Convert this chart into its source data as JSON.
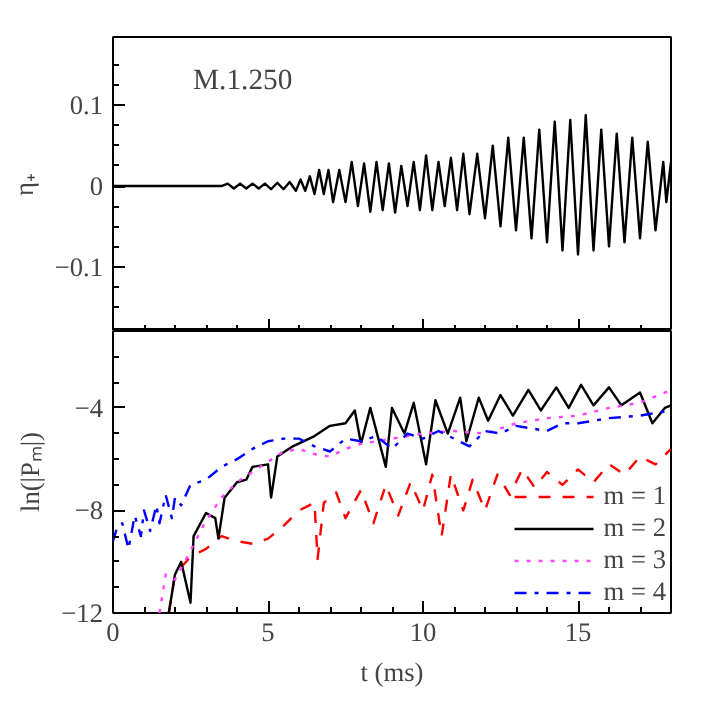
{
  "chart_data": [
    {
      "type": "line",
      "ylabel": "η₊",
      "annotations": [
        "M.1.250"
      ],
      "tick_labels": "y",
      "xlim": [
        0,
        18
      ],
      "ylim": [
        -0.18,
        0.185
      ],
      "xticks": [
        0,
        {
          "value": 1,
          "label": null
        },
        {
          "value": 2,
          "label": null
        },
        {
          "value": 3,
          "label": null
        },
        {
          "value": 4,
          "label": null
        },
        5,
        {
          "value": 6,
          "label": null
        },
        {
          "value": 7,
          "label": null
        },
        {
          "value": 8,
          "label": null
        },
        {
          "value": 9,
          "label": null
        },
        10,
        {
          "value": 11,
          "label": null
        },
        {
          "value": 12,
          "label": null
        },
        {
          "value": 13,
          "label": null
        },
        {
          "value": 14,
          "label": null
        },
        15,
        {
          "value": 16,
          "label": null
        },
        {
          "value": 17,
          "label": null
        }
      ],
      "yticks": [
        {
          "value": -0.15,
          "label": null
        },
        {
          "value": -0.125,
          "label": null
        },
        {
          "value": -0.1,
          "label": "−0.1"
        },
        {
          "value": -0.075,
          "label": null
        },
        {
          "value": -0.05,
          "label": null
        },
        {
          "value": -0.025,
          "label": null
        },
        0,
        {
          "value": 0.025,
          "label": null
        },
        {
          "value": 0.05,
          "label": null
        },
        {
          "value": 0.075,
          "label": null
        },
        0.1,
        {
          "value": 0.125,
          "label": null
        },
        {
          "value": 0.15,
          "label": null
        }
      ],
      "series": [
        {
          "color": "#000000",
          "line_style": "solid",
          "x": [
            0,
            3.5,
            3.7,
            3.9,
            4.1,
            4.3,
            4.5,
            4.7,
            4.9,
            5.1,
            5.3,
            5.5,
            5.7,
            5.9,
            6.05,
            6.2,
            6.35,
            6.5,
            6.65,
            6.8,
            6.95,
            7.1,
            7.3,
            7.5,
            7.7,
            7.9,
            8.1,
            8.3,
            8.5,
            8.7,
            8.9,
            9.1,
            9.3,
            9.5,
            9.7,
            9.9,
            10.1,
            10.3,
            10.5,
            10.7,
            10.9,
            11.1,
            11.3,
            11.5,
            11.75,
            12.0,
            12.25,
            12.5,
            12.75,
            13.0,
            13.25,
            13.5,
            13.75,
            14.0,
            14.25,
            14.5,
            14.75,
            15.0,
            15.25,
            15.5,
            15.75,
            16.0,
            16.25,
            16.5,
            16.75,
            17.0,
            17.25,
            17.5,
            17.75,
            17.85,
            18
          ],
          "values": [
            0,
            0,
            0.003,
            -0.003,
            0.003,
            -0.003,
            0.003,
            -0.003,
            0.003,
            -0.004,
            0.004,
            -0.004,
            0.005,
            -0.006,
            0.008,
            -0.006,
            0.012,
            -0.01,
            0.02,
            -0.01,
            0.02,
            -0.02,
            0.02,
            -0.02,
            0.03,
            -0.025,
            0.028,
            -0.032,
            0.03,
            -0.03,
            0.028,
            -0.033,
            0.025,
            -0.025,
            0.03,
            -0.03,
            0.038,
            -0.03,
            0.03,
            -0.025,
            0.035,
            -0.03,
            0.04,
            -0.035,
            0.04,
            -0.04,
            0.05,
            -0.05,
            0.06,
            -0.055,
            0.06,
            -0.065,
            0.07,
            -0.07,
            0.08,
            -0.08,
            0.082,
            -0.085,
            0.088,
            -0.08,
            0.07,
            -0.075,
            0.065,
            -0.07,
            0.06,
            -0.065,
            0.055,
            -0.055,
            0.03,
            -0.02,
            0.03
          ]
        }
      ]
    },
    {
      "type": "line",
      "xlabel": "t (ms)",
      "ylabel": "ln(|Pₘ|)",
      "xlim": [
        0,
        18
      ],
      "ylim": [
        -12,
        -1
      ],
      "legend": "bottom right",
      "xticks": [
        0,
        {
          "value": 1,
          "label": null
        },
        {
          "value": 2,
          "label": null
        },
        {
          "value": 3,
          "label": null
        },
        {
          "value": 4,
          "label": null
        },
        5,
        {
          "value": 6,
          "label": null
        },
        {
          "value": 7,
          "label": null
        },
        {
          "value": 8,
          "label": null
        },
        {
          "value": 9,
          "label": null
        },
        10,
        {
          "value": 11,
          "label": null
        },
        {
          "value": 12,
          "label": null
        },
        {
          "value": 13,
          "label": null
        },
        {
          "value": 14,
          "label": null
        },
        15,
        {
          "value": 16,
          "label": null
        },
        {
          "value": 17,
          "label": null
        }
      ],
      "yticks": [
        {
          "value": -12,
          "label": "−12"
        },
        {
          "value": -11,
          "label": null
        },
        {
          "value": -10,
          "label": null
        },
        {
          "value": -9,
          "label": null
        },
        {
          "value": -8,
          "label": "−8"
        },
        {
          "value": -7,
          "label": null
        },
        {
          "value": -6,
          "label": null
        },
        {
          "value": -5,
          "label": null
        },
        {
          "value": -4,
          "label": "−4"
        },
        {
          "value": -3,
          "label": null
        },
        {
          "value": -2,
          "label": null
        }
      ],
      "series": [
        {
          "name": "m = 1",
          "color": "#ff0000",
          "line_style": "dashed",
          "x": [
            1.8,
            2,
            2.5,
            3,
            3.5,
            4,
            4.5,
            5,
            5.5,
            6,
            6.5,
            6.6,
            6.8,
            7.2,
            7.5,
            8,
            8.4,
            8.8,
            9.2,
            9.6,
            10,
            10.3,
            10.6,
            10.9,
            11.3,
            11.6,
            12,
            12.4,
            12.8,
            13.2,
            13.6,
            14,
            14.5,
            15,
            15.5,
            16,
            16.5,
            17,
            17.5,
            18
          ],
          "values": [
            -12,
            -10.5,
            -9.8,
            -9.5,
            -9.0,
            -9.2,
            -9.3,
            -9.1,
            -8.6,
            -8.0,
            -7.7,
            -9.9,
            -7.7,
            -7.3,
            -8.3,
            -7.2,
            -8.5,
            -7.0,
            -8.2,
            -6.9,
            -8.0,
            -6.6,
            -9.0,
            -6.6,
            -8.0,
            -6.8,
            -8.0,
            -6.6,
            -7.4,
            -6.4,
            -7.1,
            -6.5,
            -7.0,
            -6.4,
            -6.9,
            -6.2,
            -6.6,
            -5.9,
            -6.2,
            -5.6
          ]
        },
        {
          "name": "m = 2",
          "color": "#000000",
          "line_style": "solid",
          "x": [
            1.8,
            2,
            2.2,
            2.5,
            2.6,
            3,
            3.3,
            3.4,
            3.6,
            4,
            4.3,
            4.5,
            5,
            5.1,
            5.3,
            5.8,
            6.5,
            7,
            7.5,
            7.8,
            8,
            8.3,
            8.8,
            9,
            9.4,
            9.7,
            10.1,
            10.4,
            10.8,
            11.2,
            11.4,
            11.8,
            12.1,
            12.5,
            12.9,
            13.4,
            13.8,
            14.3,
            14.7,
            15.1,
            15.5,
            16,
            16.4,
            17,
            17.4,
            17.8,
            18
          ],
          "values": [
            -12,
            -10.5,
            -10,
            -11.6,
            -9,
            -8.1,
            -8.3,
            -9.1,
            -7.5,
            -6.9,
            -6.8,
            -6.3,
            -6.2,
            -7.5,
            -5.9,
            -5.5,
            -5.1,
            -4.7,
            -4.6,
            -4.1,
            -5.4,
            -4.0,
            -6.3,
            -4.0,
            -5.0,
            -3.8,
            -6.2,
            -3.7,
            -5.0,
            -3.6,
            -5.3,
            -3.6,
            -4.5,
            -3.5,
            -4.3,
            -3.3,
            -4.1,
            -3.2,
            -4.0,
            -3.1,
            -3.9,
            -3.2,
            -3.9,
            -3.4,
            -4.6,
            -4.0,
            -3.9
          ]
        },
        {
          "name": "m = 3",
          "color": "#ff44ff",
          "line_style": "dotted",
          "x": [
            1.5,
            1.7,
            2,
            2.4,
            3,
            3.5,
            4,
            4.5,
            5,
            5.5,
            6,
            6.5,
            7,
            7.5,
            8,
            9,
            10,
            11,
            12,
            12.5,
            13,
            14,
            15,
            16,
            17,
            18
          ],
          "values": [
            -12,
            -10.5,
            -10.7,
            -9.8,
            -8.4,
            -7.5,
            -6.9,
            -6.5,
            -6.1,
            -5.7,
            -5.6,
            -5.8,
            -5.9,
            -5.6,
            -5.4,
            -5.2,
            -5.0,
            -4.9,
            -5.0,
            -4.8,
            -4.6,
            -4.4,
            -4.3,
            -4.0,
            -3.8,
            -3.3
          ]
        },
        {
          "name": "m = 4",
          "color": "#0000ff",
          "line_style": "dashdot",
          "x": [
            0,
            0.15,
            0.3,
            0.5,
            0.7,
            0.9,
            1,
            1.2,
            1.4,
            1.5,
            1.7,
            1.9,
            2,
            2.2,
            2.5,
            3,
            3.5,
            4,
            4.5,
            5,
            5.5,
            6,
            6.5,
            7,
            7.5,
            8,
            8.5,
            9,
            9.5,
            10,
            10.5,
            11,
            11.5,
            12,
            12.5,
            13,
            14,
            14.5,
            15,
            16,
            17,
            18
          ],
          "values": [
            -9.2,
            -8.6,
            -8.5,
            -9.5,
            -8.2,
            -9.0,
            -8.0,
            -8.8,
            -7.8,
            -8.5,
            -7.4,
            -8.3,
            -7.5,
            -7.8,
            -7.0,
            -6.8,
            -6.3,
            -6.0,
            -5.6,
            -5.3,
            -5.2,
            -5.2,
            -5.5,
            -5.7,
            -5.2,
            -5.3,
            -5.1,
            -5.6,
            -5.0,
            -5.2,
            -4.9,
            -5.2,
            -5.5,
            -4.9,
            -5.0,
            -4.7,
            -4.9,
            -4.6,
            -4.6,
            -4.4,
            -4.3,
            -4.1
          ]
        }
      ]
    }
  ]
}
